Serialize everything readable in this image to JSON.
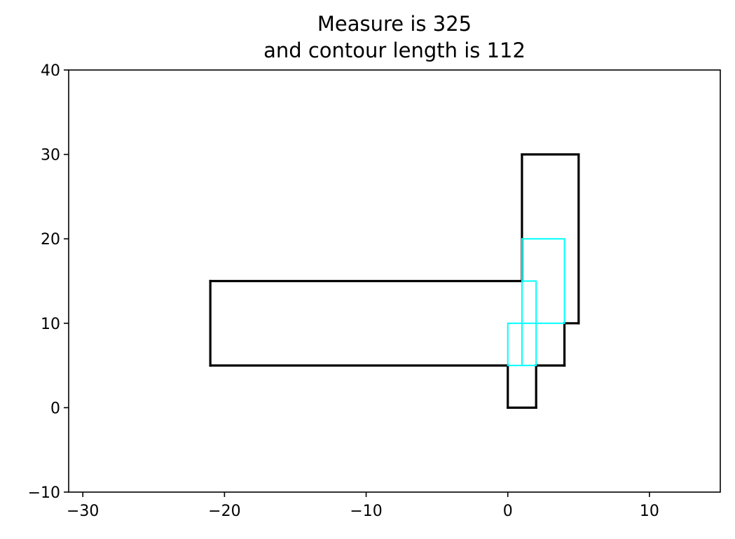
{
  "chart_data": {
    "type": "line",
    "title_lines": [
      "Measure is 325",
      "and contour length is 112"
    ],
    "xlabel": "",
    "ylabel": "",
    "xlim": [
      -31,
      15
    ],
    "ylim": [
      -10,
      40
    ],
    "x_ticks": [
      -30,
      -20,
      -10,
      0,
      10
    ],
    "x_tick_labels": [
      "−30",
      "−20",
      "−10",
      "0",
      "10"
    ],
    "y_ticks": [
      -10,
      0,
      10,
      20,
      30,
      40
    ],
    "y_tick_labels": [
      "−10",
      "0",
      "10",
      "20",
      "30",
      "40"
    ],
    "grid": false,
    "legend": "none",
    "series": [
      {
        "style": "contour",
        "color": "#000000",
        "segments": [
          [
            [
              -21,
              5
            ],
            [
              -21,
              15
            ]
          ],
          [
            [
              -21,
              15
            ],
            [
              1,
              15
            ]
          ],
          [
            [
              1,
              15
            ],
            [
              1,
              30
            ]
          ],
          [
            [
              1,
              30
            ],
            [
              5,
              30
            ]
          ],
          [
            [
              5,
              30
            ],
            [
              5,
              10
            ]
          ],
          [
            [
              5,
              10
            ],
            [
              4,
              10
            ]
          ],
          [
            [
              4,
              10
            ],
            [
              4,
              5
            ]
          ],
          [
            [
              4,
              5
            ],
            [
              2,
              5
            ]
          ],
          [
            [
              2,
              5
            ],
            [
              2,
              0
            ]
          ],
          [
            [
              2,
              0
            ],
            [
              0,
              0
            ]
          ],
          [
            [
              0,
              0
            ],
            [
              0,
              5
            ]
          ],
          [
            [
              0,
              5
            ],
            [
              -21,
              5
            ]
          ]
        ]
      },
      {
        "style": "rectangles",
        "color": "#00ffff",
        "rectangles": [
          {
            "x0": 1,
            "y0": 10,
            "x1": 4,
            "y1": 20
          },
          {
            "x0": 0,
            "y0": 5,
            "x1": 1,
            "y1": 10
          },
          {
            "x0": 1,
            "y0": 5,
            "x1": 2,
            "y1": 15
          }
        ]
      }
    ]
  }
}
